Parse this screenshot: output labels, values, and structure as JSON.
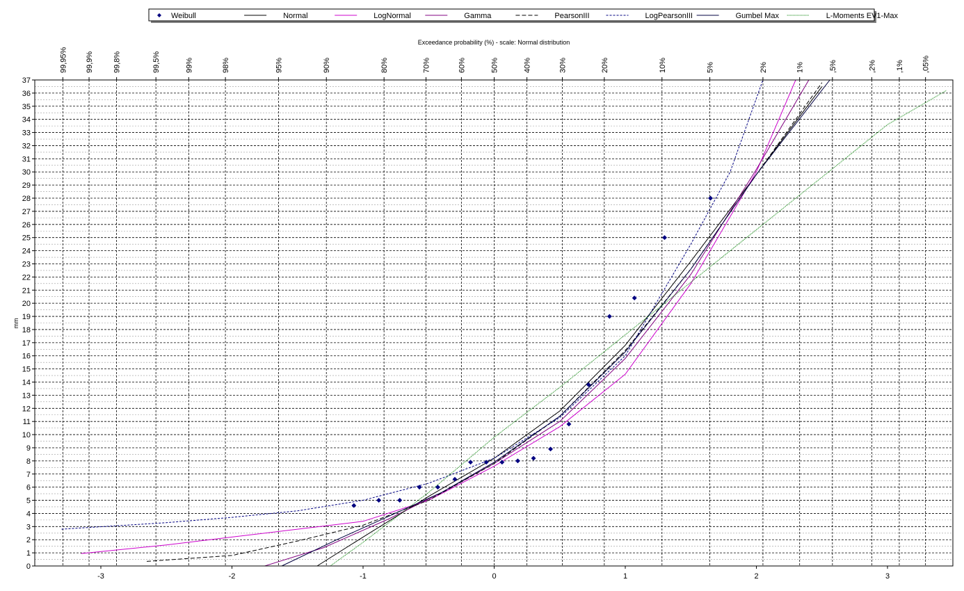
{
  "chart_data": {
    "type": "scatter",
    "title": "Exceedance probability (%) - scale: Normal distribution",
    "ylabel": "mm",
    "xlabel": "",
    "xlim": [
      -3.5,
      3.5
    ],
    "ylim": [
      0,
      37
    ],
    "x_ticks": [
      "-3",
      "-2",
      "-1",
      "0",
      "1",
      "2",
      "3"
    ],
    "x_tick_values": [
      -3,
      -2,
      -1,
      0,
      1,
      2,
      3
    ],
    "y_ticks": [
      "0",
      "1",
      "2",
      "3",
      "4",
      "5",
      "6",
      "7",
      "8",
      "9",
      "10",
      "11",
      "12",
      "13",
      "14",
      "15",
      "16",
      "17",
      "18",
      "19",
      "20",
      "21",
      "22",
      "23",
      "24",
      "25",
      "26",
      "27",
      "28",
      "29",
      "30",
      "31",
      "32",
      "33",
      "34",
      "35",
      "36",
      "37"
    ],
    "prob_ticks": [
      {
        "label": "99,95%",
        "z": -3.29
      },
      {
        "label": "99,9%",
        "z": -3.09
      },
      {
        "label": "99,8%",
        "z": -2.88
      },
      {
        "label": "99,5%",
        "z": -2.58
      },
      {
        "label": "99%",
        "z": -2.33
      },
      {
        "label": "98%",
        "z": -2.05
      },
      {
        "label": "95%",
        "z": -1.645
      },
      {
        "label": "90%",
        "z": -1.28
      },
      {
        "label": "80%",
        "z": -0.84
      },
      {
        "label": "70%",
        "z": -0.52
      },
      {
        "label": "60%",
        "z": -0.25
      },
      {
        "label": "50%",
        "z": 0
      },
      {
        "label": "40%",
        "z": 0.25
      },
      {
        "label": "30%",
        "z": 0.52
      },
      {
        "label": "20%",
        "z": 0.84
      },
      {
        "label": "10%",
        "z": 1.28
      },
      {
        "label": "5%",
        "z": 1.645
      },
      {
        "label": "2%",
        "z": 2.05
      },
      {
        "label": "1%",
        "z": 2.33
      },
      {
        "label": ",5%",
        "z": 2.58
      },
      {
        "label": ",2%",
        "z": 2.88
      },
      {
        "label": ",1%",
        "z": 3.09
      },
      {
        "label": ",05%",
        "z": 3.29
      }
    ],
    "legend_placement": "top",
    "grid": true,
    "series": [
      {
        "name": "Weibull",
        "kind": "points",
        "color": "#000080",
        "points": [
          [
            -1.07,
            4.6
          ],
          [
            -0.88,
            5.0
          ],
          [
            -0.72,
            5.0
          ],
          [
            -0.57,
            6.0
          ],
          [
            -0.43,
            6.0
          ],
          [
            -0.3,
            6.6
          ],
          [
            -0.18,
            7.9
          ],
          [
            -0.06,
            7.9
          ],
          [
            0.06,
            7.9
          ],
          [
            0.18,
            8.0
          ],
          [
            0.3,
            8.2
          ],
          [
            0.43,
            8.9
          ],
          [
            0.57,
            10.8
          ],
          [
            0.72,
            13.8
          ],
          [
            0.88,
            19.0
          ],
          [
            1.07,
            20.4
          ],
          [
            1.3,
            25.0
          ],
          [
            1.65,
            28.0
          ]
        ]
      },
      {
        "name": "Normal",
        "kind": "line",
        "color": "#000000",
        "dash": "",
        "points": [
          [
            -1.35,
            0
          ],
          [
            -1.0,
            2.2
          ],
          [
            -0.5,
            5.3
          ],
          [
            0,
            8.2
          ],
          [
            0.5,
            11.8
          ],
          [
            1.0,
            16.8
          ],
          [
            1.5,
            23.2
          ],
          [
            2.0,
            29.8
          ],
          [
            2.5,
            36.5
          ]
        ]
      },
      {
        "name": "LogNormal",
        "kind": "line",
        "color": "#cc00cc",
        "dash": "",
        "points": [
          [
            -3.15,
            0.95
          ],
          [
            -2.5,
            1.6
          ],
          [
            -2.0,
            2.2
          ],
          [
            -1.5,
            2.8
          ],
          [
            -1.0,
            3.4
          ],
          [
            -0.5,
            5.0
          ],
          [
            0,
            7.6
          ],
          [
            0.5,
            10.6
          ],
          [
            1.0,
            14.6
          ],
          [
            1.5,
            21.5
          ],
          [
            2.0,
            30.0
          ],
          [
            2.3,
            37.0
          ]
        ]
      },
      {
        "name": "Gamma",
        "kind": "line",
        "color": "#800080",
        "dash": "",
        "points": [
          [
            -1.75,
            0
          ],
          [
            -1.3,
            1.4
          ],
          [
            -0.8,
            3.6
          ],
          [
            -0.4,
            5.6
          ],
          [
            0,
            7.8
          ],
          [
            0.5,
            11.0
          ],
          [
            1.0,
            15.8
          ],
          [
            1.5,
            22.2
          ],
          [
            2.0,
            30.2
          ],
          [
            2.4,
            37.0
          ]
        ]
      },
      {
        "name": "PearsonIII",
        "kind": "line",
        "color": "#000000",
        "dash": "6 3",
        "points": [
          [
            -2.65,
            0.35
          ],
          [
            -2.0,
            0.8
          ],
          [
            -1.5,
            1.9
          ],
          [
            -1.0,
            3.1
          ],
          [
            -0.5,
            5.0
          ],
          [
            0,
            7.8
          ],
          [
            0.5,
            11.4
          ],
          [
            1.0,
            16.4
          ],
          [
            1.5,
            22.6
          ],
          [
            2.0,
            29.8
          ],
          [
            2.5,
            36.8
          ]
        ]
      },
      {
        "name": "LogPearsonIII",
        "kind": "line",
        "color": "#000080",
        "dash": "3 2",
        "points": [
          [
            -3.3,
            2.8
          ],
          [
            -2.5,
            3.3
          ],
          [
            -2.0,
            3.7
          ],
          [
            -1.5,
            4.2
          ],
          [
            -1.0,
            5.0
          ],
          [
            -0.5,
            6.3
          ],
          [
            0,
            8.2
          ],
          [
            0.5,
            11.3
          ],
          [
            1.0,
            16.0
          ],
          [
            1.5,
            24.5
          ],
          [
            1.8,
            30.0
          ],
          [
            2.05,
            37.0
          ]
        ]
      },
      {
        "name": "Gumbel Max",
        "kind": "line",
        "color": "#000040",
        "dash": "",
        "points": [
          [
            -1.62,
            0
          ],
          [
            -1.2,
            2.0
          ],
          [
            -0.8,
            3.8
          ],
          [
            -0.4,
            5.6
          ],
          [
            0,
            7.9
          ],
          [
            0.5,
            11.4
          ],
          [
            1.0,
            16.3
          ],
          [
            1.5,
            22.6
          ],
          [
            2.0,
            29.8
          ],
          [
            2.56,
            37.0
          ]
        ]
      },
      {
        "name": "L-Moments EV1-Max",
        "kind": "line",
        "color": "#008000",
        "dash": "1 1",
        "points": [
          [
            -1.25,
            0
          ],
          [
            -1.0,
            1.8
          ],
          [
            -0.5,
            5.6
          ],
          [
            0,
            9.8
          ],
          [
            0.5,
            13.6
          ],
          [
            1.0,
            17.6
          ],
          [
            1.5,
            21.6
          ],
          [
            2.0,
            25.6
          ],
          [
            2.5,
            29.6
          ],
          [
            3.0,
            33.6
          ],
          [
            3.45,
            36.2
          ]
        ]
      }
    ]
  }
}
